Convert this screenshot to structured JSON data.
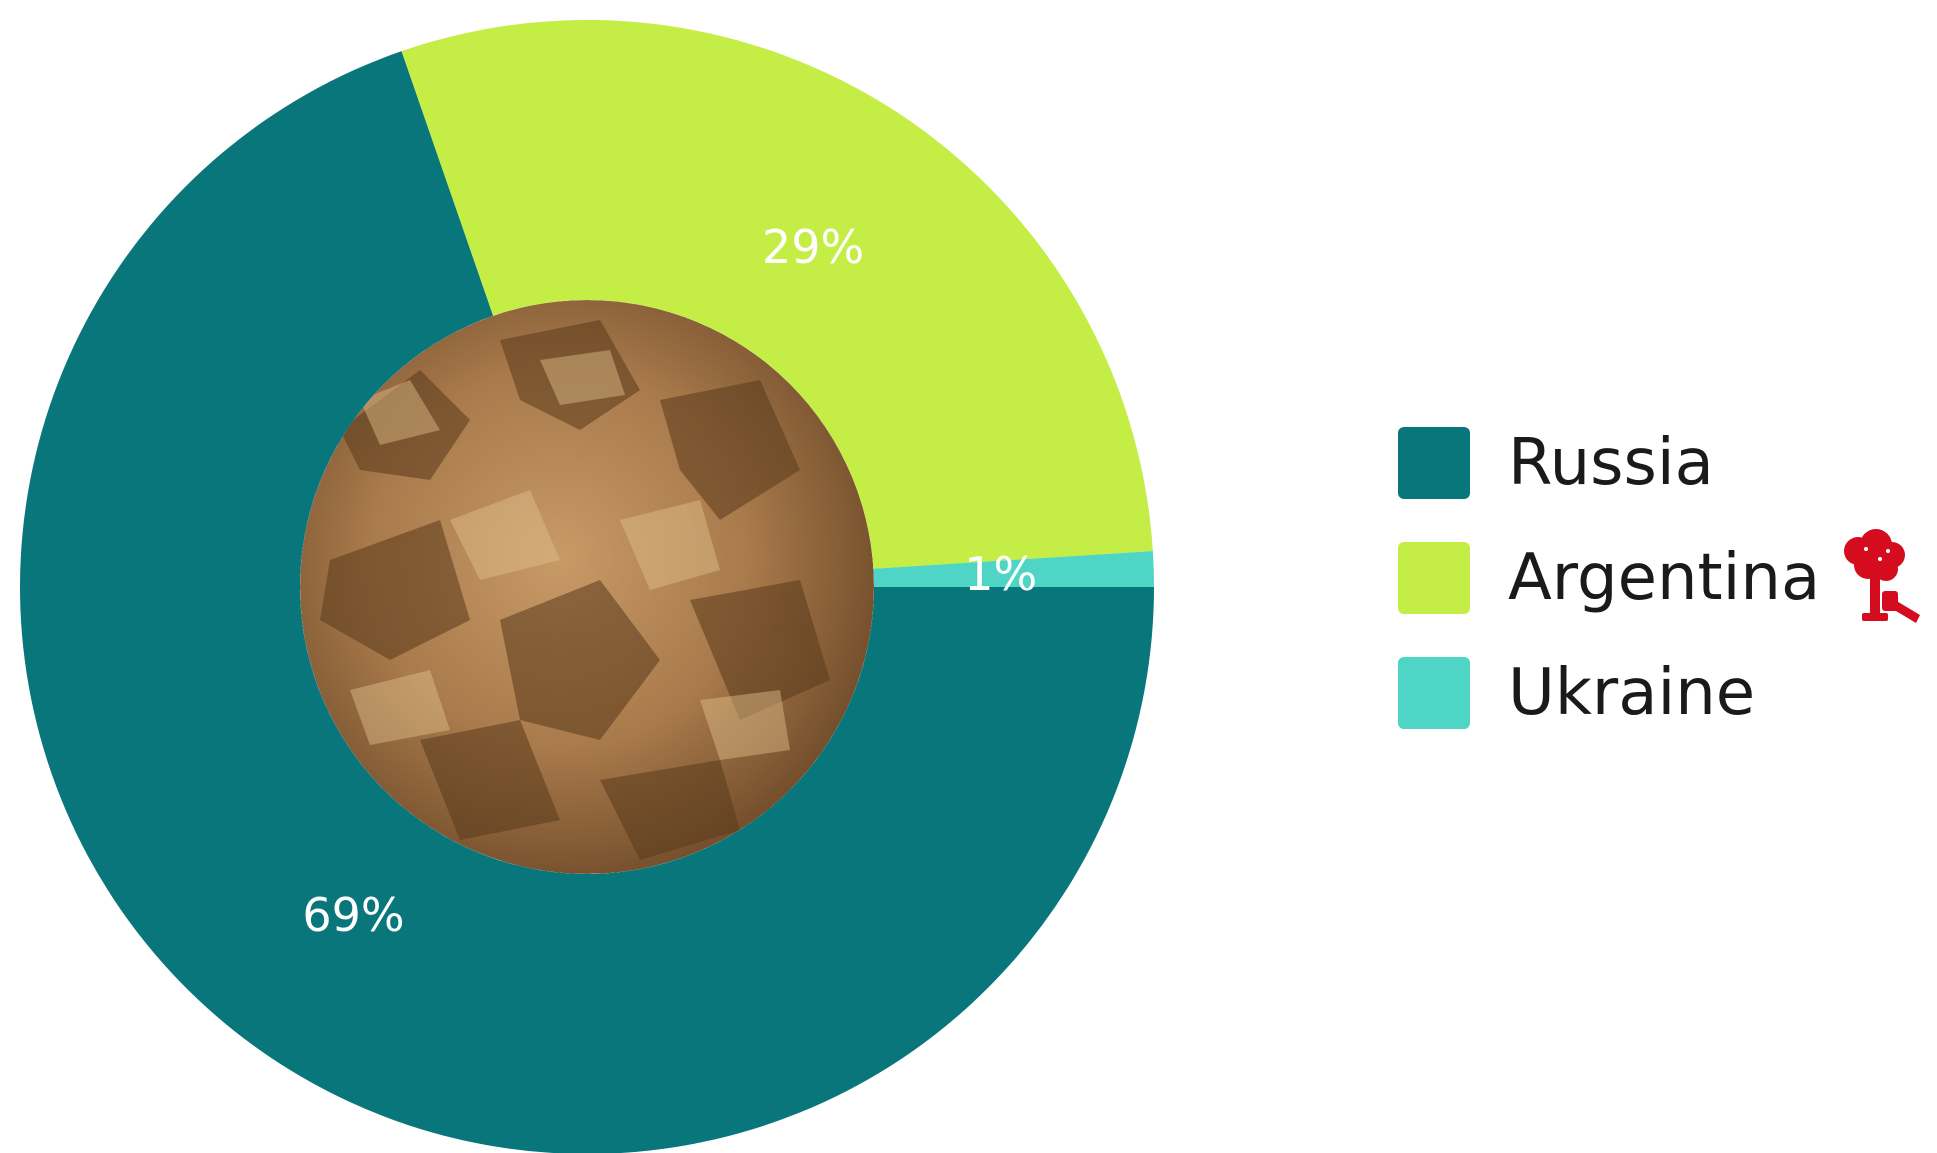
{
  "chart_data": {
    "type": "pie",
    "donut": true,
    "categories": [
      "Russia",
      "Argentina",
      "Ukraine"
    ],
    "values": [
      69,
      29,
      1
    ],
    "value_labels": [
      "69%",
      "29%",
      "1%"
    ],
    "colors": [
      "#09767c",
      "#c4ed46",
      "#4fd5c6"
    ],
    "legend_position": "right",
    "center_image": "crumbled-meal-photo"
  },
  "legend": {
    "items": [
      {
        "label": "Russia",
        "color": "#09767c"
      },
      {
        "label": "Argentina",
        "color": "#c4ed46",
        "icon": "tree-and-chainsaw-icon"
      },
      {
        "label": "Ukraine",
        "color": "#4fd5c6"
      }
    ]
  }
}
